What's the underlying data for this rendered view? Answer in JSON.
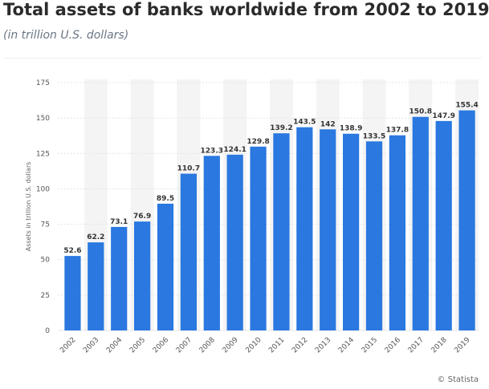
{
  "header": {
    "title": "Total assets of banks worldwide from 2002 to 2019",
    "subtitle": "(in trillion U.S. dollars)"
  },
  "footer": {
    "credit": "© Statista"
  },
  "colors": {
    "bar": "#2a78e0",
    "stripe": "#f4f4f4",
    "grid": "#e4e4e4"
  },
  "chart_data": {
    "type": "bar",
    "title": "Total assets of banks worldwide from 2002 to 2019",
    "subtitle": "(in trillion U.S. dollars)",
    "xlabel": "",
    "ylabel": "Assets in trillion U.S. dollars",
    "ylim": [
      0,
      175
    ],
    "yticks": [
      0,
      25,
      50,
      75,
      100,
      125,
      150,
      175
    ],
    "grid": true,
    "categories": [
      "2002",
      "2003",
      "2004",
      "2005",
      "2006",
      "2007",
      "2008",
      "2009",
      "2010",
      "2011",
      "2012",
      "2013",
      "2014",
      "2015",
      "2016",
      "2017",
      "2018",
      "2019"
    ],
    "values": [
      52.6,
      62.2,
      73.1,
      76.9,
      89.5,
      110.7,
      123.3,
      124.1,
      129.8,
      139.2,
      143.5,
      142,
      138.9,
      133.5,
      137.8,
      150.8,
      147.9,
      155.4
    ],
    "value_labels": [
      "52.6",
      "62.2",
      "73.1",
      "76.9",
      "89.5",
      "110.7",
      "123.3",
      "124.1",
      "129.8",
      "139.2",
      "143.5",
      "142",
      "138.9",
      "133.5",
      "137.8",
      "150.8",
      "147.9",
      "155.4"
    ]
  }
}
